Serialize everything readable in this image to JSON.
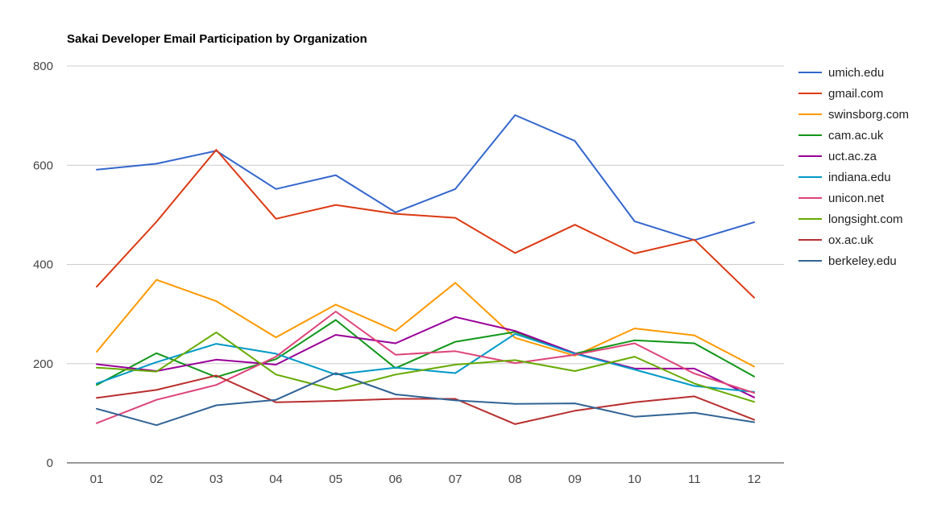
{
  "chart_data": {
    "type": "line",
    "title": "Sakai Developer Email Participation by Organization",
    "xlabel": "",
    "ylabel": "",
    "x": [
      "01",
      "02",
      "03",
      "04",
      "05",
      "06",
      "07",
      "08",
      "09",
      "10",
      "11",
      "12"
    ],
    "ylim": [
      0,
      800
    ],
    "yticks": [
      0,
      200,
      400,
      600,
      800
    ],
    "grid": true,
    "legend": "right",
    "series": [
      {
        "name": "umich.edu",
        "color": "#3366cc",
        "values": [
          591,
          603,
          629,
          552,
          580,
          505,
          552,
          701,
          649,
          487,
          449,
          485
        ]
      },
      {
        "name": "gmail.com",
        "color": "#dc3912",
        "values": [
          355,
          486,
          631,
          492,
          520,
          502,
          494,
          423,
          480,
          422,
          450,
          333
        ]
      },
      {
        "name": "swinsborg.com",
        "color": "#ff9900",
        "values": [
          224,
          369,
          326,
          253,
          319,
          266,
          363,
          252,
          216,
          271,
          257,
          194
        ]
      },
      {
        "name": "cam.ac.uk",
        "color": "#109618",
        "values": [
          157,
          221,
          173,
          209,
          288,
          191,
          244,
          264,
          220,
          247,
          241,
          174
        ]
      },
      {
        "name": "uct.ac.za",
        "color": "#990099",
        "values": [
          199,
          185,
          208,
          198,
          258,
          241,
          294,
          266,
          221,
          190,
          190,
          132
        ]
      },
      {
        "name": "indiana.edu",
        "color": "#0099c6",
        "values": [
          160,
          203,
          240,
          220,
          178,
          192,
          181,
          260,
          220,
          188,
          155,
          143
        ]
      },
      {
        "name": "unicon.net",
        "color": "#dd4477",
        "values": [
          80,
          127,
          157,
          214,
          305,
          218,
          225,
          201,
          218,
          241,
          180,
          141
        ]
      },
      {
        "name": "longsight.com",
        "color": "#66aa00",
        "values": [
          192,
          184,
          263,
          178,
          147,
          178,
          198,
          207,
          185,
          214,
          160,
          123
        ]
      },
      {
        "name": "ox.ac.uk",
        "color": "#b82e2e",
        "values": [
          131,
          147,
          176,
          122,
          125,
          129,
          129,
          78,
          105,
          122,
          134,
          87
        ]
      },
      {
        "name": "berkeley.edu",
        "color": "#316395",
        "values": [
          109,
          76,
          116,
          127,
          181,
          138,
          126,
          119,
          120,
          93,
          101,
          82
        ]
      }
    ]
  }
}
